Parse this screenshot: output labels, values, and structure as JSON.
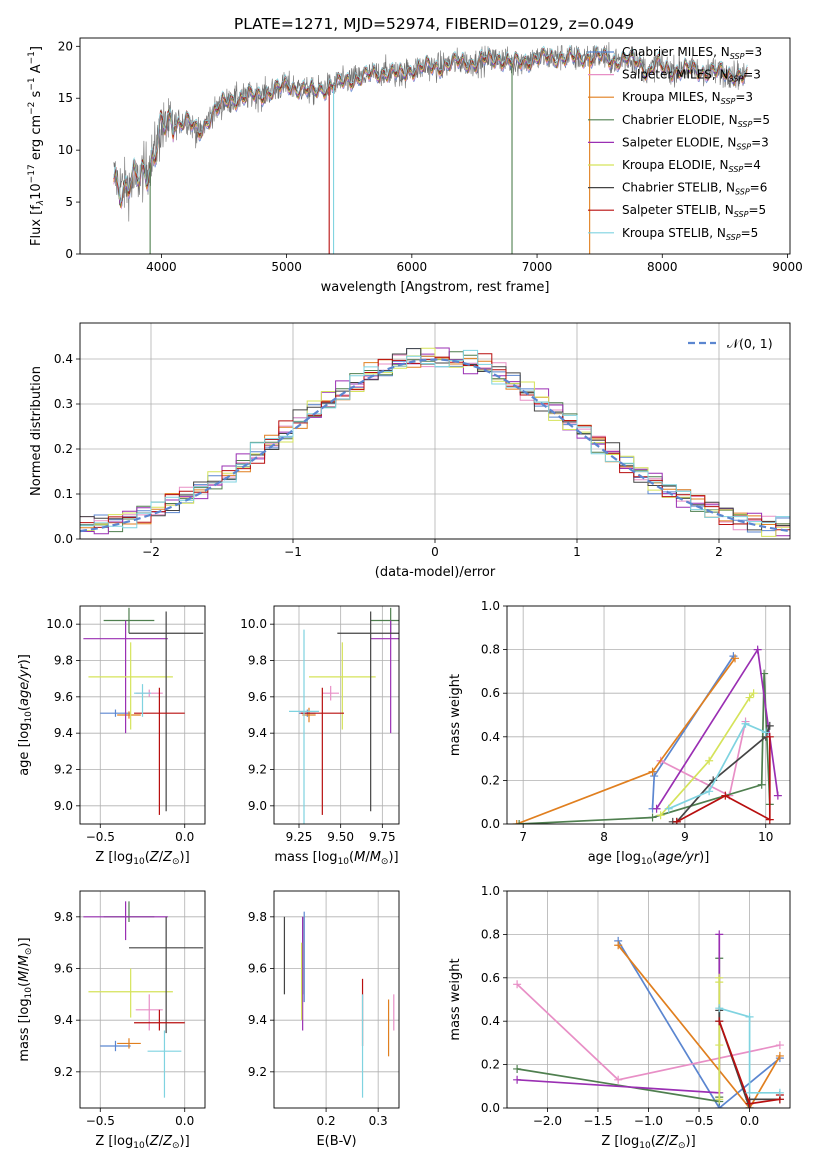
{
  "figure": {
    "title": "PLATE=1271, MJD=52974, FIBERID=0129, z=0.049"
  },
  "models": [
    {
      "label": "Chabrier MILES, N",
      "nssp": "=3",
      "color": "#5b86d0"
    },
    {
      "label": "Salpeter MILES, N",
      "nssp": "=3",
      "color": "#e88fc6"
    },
    {
      "label": "Kroupa MILES, N",
      "nssp": "=3",
      "color": "#e07f1f"
    },
    {
      "label": "Chabrier ELODIE, N",
      "nssp": "=5",
      "color": "#4f7f4f"
    },
    {
      "label": "Salpeter ELODIE, N",
      "nssp": "=3",
      "color": "#9a2fb3"
    },
    {
      "label": "Kroupa ELODIE, N",
      "nssp": "=4",
      "color": "#d5e35a"
    },
    {
      "label": "Chabrier STELIB, N",
      "nssp": "=6",
      "color": "#444444"
    },
    {
      "label": "Salpeter STELIB, N",
      "nssp": "=5",
      "color": "#b80f0f"
    },
    {
      "label": "Kroupa STELIB, N",
      "nssp": "=5",
      "color": "#7fd3e0"
    }
  ],
  "nssp_sub": "SSP",
  "chart_data": [
    {
      "id": "spectrum",
      "type": "line",
      "xlabel": "wavelength [Angstrom, rest frame]",
      "ylabel": "Flux [f",
      "ylabel_unit": "10",
      "ylabel_exp": "−17",
      "ylabel_rest": " erg cm",
      "ylabel_exp2": "−2",
      "ylabel_rest2": " s",
      "ylabel_exp3": "−1",
      "ylabel_rest3": " A",
      "ylabel_exp4": "−1",
      "ylabel_close": "]",
      "xlim": [
        3350,
        9020
      ],
      "ylim": [
        0,
        20.8
      ],
      "xticks": [
        4000,
        5000,
        6000,
        7000,
        8000,
        9000
      ],
      "yticks": [
        0,
        5,
        10,
        15,
        20
      ],
      "continuum": [
        [
          3620,
          7.5
        ],
        [
          3700,
          6.3
        ],
        [
          3800,
          7.0
        ],
        [
          3900,
          8.5
        ],
        [
          3950,
          10.0
        ],
        [
          4000,
          12.0
        ],
        [
          4100,
          12.5
        ],
        [
          4200,
          13.0
        ],
        [
          4300,
          11.5
        ],
        [
          4400,
          13.5
        ],
        [
          4500,
          14.5
        ],
        [
          4600,
          15.0
        ],
        [
          4700,
          15.2
        ],
        [
          4800,
          15.3
        ],
        [
          4900,
          15.8
        ],
        [
          5000,
          16.2
        ],
        [
          5100,
          16.0
        ],
        [
          5200,
          15.6
        ],
        [
          5300,
          16.0
        ],
        [
          5400,
          16.3
        ],
        [
          5500,
          16.8
        ],
        [
          5600,
          17.0
        ],
        [
          5700,
          17.3
        ],
        [
          5800,
          17.6
        ],
        [
          5900,
          17.2
        ],
        [
          6000,
          17.8
        ],
        [
          6100,
          18.0
        ],
        [
          6200,
          18.0
        ],
        [
          6300,
          18.3
        ],
        [
          6400,
          18.5
        ],
        [
          6500,
          18.4
        ],
        [
          6600,
          18.7
        ],
        [
          6700,
          18.9
        ],
        [
          6800,
          18.3
        ],
        [
          6900,
          18.6
        ],
        [
          7000,
          18.8
        ],
        [
          7100,
          18.9
        ],
        [
          7200,
          19.0
        ],
        [
          7300,
          18.8
        ],
        [
          7400,
          19.0
        ],
        [
          7500,
          19.0
        ],
        [
          7600,
          18.6
        ],
        [
          7700,
          18.8
        ],
        [
          7800,
          18.5
        ],
        [
          7900,
          17.5
        ],
        [
          7950,
          18.5
        ],
        [
          8000,
          17.8
        ],
        [
          8100,
          17.7
        ],
        [
          8200,
          17.8
        ],
        [
          8300,
          17.6
        ],
        [
          8400,
          17.6
        ],
        [
          8500,
          17.4
        ],
        [
          8600,
          17.3
        ],
        [
          8650,
          17.0
        ]
      ],
      "model_range": [
        3620,
        8680
      ],
      "data_range": [
        3620,
        8660
      ],
      "spikes": [
        [
          3910,
          3
        ],
        [
          5340,
          7
        ],
        [
          5375,
          8
        ],
        [
          6800,
          3
        ],
        [
          7420,
          2
        ]
      ]
    },
    {
      "id": "residuals",
      "type": "histogram",
      "xlabel": "(data-model)/error",
      "ylabel": "Normed distribution",
      "legend": "𝒩(0, 1)",
      "xlim": [
        -2.5,
        2.5
      ],
      "ylim": [
        0,
        0.48
      ],
      "xticks": [
        -2,
        -1,
        0,
        1,
        2
      ],
      "yticks": [
        0,
        0.1,
        0.2,
        0.3,
        0.4
      ],
      "bin_width": 0.1,
      "bin_start": -2.5
    },
    {
      "id": "age_vs_Z",
      "type": "errorbar",
      "xlabel": "Z [log",
      "ylabel": "age  [log",
      "xlim": [
        -0.62,
        0.12
      ],
      "ylim": [
        8.9,
        10.1
      ],
      "xticks": [
        -0.5,
        0.0
      ],
      "yticks": [
        9.0,
        9.2,
        9.4,
        9.6,
        9.8,
        10.0
      ],
      "points": [
        {
          "x": -0.41,
          "xe": [
            0.09,
            0.09
          ],
          "y": 9.51,
          "ye": [
            0.02,
            0.02
          ]
        },
        {
          "x": -0.21,
          "xe": [
            0.08,
            0.08
          ],
          "y": 9.62,
          "ye": [
            0.02,
            0.02
          ]
        },
        {
          "x": -0.33,
          "xe": [
            0.07,
            0.07
          ],
          "y": 9.5,
          "ye": [
            0.02,
            0.02
          ]
        },
        {
          "x": -0.33,
          "xe": [
            0.15,
            0.15
          ],
          "y": 10.02,
          "ye": [
            0.07,
            0.07
          ]
        },
        {
          "x": -0.35,
          "xe": [
            0.25,
            0.25
          ],
          "y": 9.92,
          "ye": [
            0.52,
            0.1
          ]
        },
        {
          "x": -0.32,
          "xe": [
            0.25,
            0.25
          ],
          "y": 9.71,
          "ye": [
            0.29,
            0.19
          ]
        },
        {
          "x": -0.11,
          "xe": [
            0.22,
            0.22
          ],
          "y": 9.95,
          "ye": [
            0.98,
            0.12
          ]
        },
        {
          "x": -0.15,
          "xe": [
            0.15,
            0.15
          ],
          "y": 9.51,
          "ye": [
            0.56,
            0.14
          ]
        },
        {
          "x": -0.25,
          "xe": [
            0.05,
            0.05
          ],
          "y": 9.62,
          "ye": [
            0.13,
            0.05
          ]
        }
      ]
    },
    {
      "id": "age_vs_mass",
      "type": "errorbar",
      "xlabel": "mass [log",
      "xlim": [
        9.1,
        9.85
      ],
      "ylim": [
        8.9,
        10.1
      ],
      "xticks": [
        9.25,
        9.5,
        9.75
      ],
      "yticks": [
        9.0,
        9.2,
        9.4,
        9.6,
        9.8,
        10.0
      ],
      "points": [
        {
          "x": 9.3,
          "xe": [
            0.05,
            0.05
          ],
          "y": 9.51,
          "ye": [
            0.02,
            0.02
          ]
        },
        {
          "x": 9.44,
          "xe": [
            0.05,
            0.05
          ],
          "y": 9.62,
          "ye": [
            0.04,
            0.04
          ]
        },
        {
          "x": 9.31,
          "xe": [
            0.04,
            0.04
          ],
          "y": 9.5,
          "ye": [
            0.04,
            0.04
          ]
        },
        {
          "x": 9.8,
          "xe": [
            0.12,
            0.12
          ],
          "y": 10.02,
          "ye": [
            0.07,
            0.07
          ]
        },
        {
          "x": 9.8,
          "xe": [
            0.12,
            0.12
          ],
          "y": 9.92,
          "ye": [
            0.52,
            0.1
          ]
        },
        {
          "x": 9.51,
          "xe": [
            0.2,
            0.2
          ],
          "y": 9.71,
          "ye": [
            0.29,
            0.19
          ]
        },
        {
          "x": 9.68,
          "xe": [
            0.2,
            0.2
          ],
          "y": 9.95,
          "ye": [
            0.98,
            0.12
          ]
        },
        {
          "x": 9.39,
          "xe": [
            0.13,
            0.13
          ],
          "y": 9.51,
          "ye": [
            0.56,
            0.14
          ]
        },
        {
          "x": 9.28,
          "xe": [
            0.09,
            0.09
          ],
          "y": 9.52,
          "ye": [
            0.62,
            0.45
          ]
        }
      ]
    },
    {
      "id": "mw_vs_age",
      "type": "line",
      "xlabel": "age  [log",
      "ylabel": "mass weight",
      "xlim": [
        6.8,
        10.3
      ],
      "ylim": [
        0,
        1.0
      ],
      "xticks": [
        7,
        8,
        9,
        10
      ],
      "yticks": [
        0.0,
        0.2,
        0.4,
        0.6,
        0.8,
        1.0
      ],
      "series": [
        {
          "x": [
            8.6,
            8.62,
            9.6
          ],
          "y": [
            0.07,
            0.22,
            0.77
          ]
        },
        {
          "x": [
            8.7,
            9.55,
            9.75
          ],
          "y": [
            0.29,
            0.13,
            0.47
          ]
        },
        {
          "x": [
            6.92,
            8.6,
            9.62
          ],
          "y": [
            0.0,
            0.24,
            0.76
          ]
        },
        {
          "x": [
            6.95,
            8.6,
            9.95,
            9.98,
            10.05
          ],
          "y": [
            0.0,
            0.03,
            0.18,
            0.69,
            0.09
          ]
        },
        {
          "x": [
            8.65,
            9.9,
            10.15
          ],
          "y": [
            0.07,
            0.8,
            0.13
          ]
        },
        {
          "x": [
            8.7,
            9.3,
            9.8,
            9.85
          ],
          "y": [
            0.04,
            0.29,
            0.58,
            0.6
          ]
        },
        {
          "x": [
            8.85,
            8.9,
            9.35,
            10.0,
            10.05
          ],
          "y": [
            0.01,
            0.01,
            0.2,
            0.4,
            0.45
          ]
        },
        {
          "x": [
            8.9,
            9.5,
            10.05,
            10.05
          ],
          "y": [
            0.01,
            0.13,
            0.02,
            0.4
          ]
        },
        {
          "x": [
            8.8,
            9.3,
            9.75,
            10.0
          ],
          "y": [
            0.07,
            0.15,
            0.46,
            0.42
          ]
        }
      ]
    },
    {
      "id": "mass_vs_Z",
      "type": "errorbar",
      "xlabel": "Z [log",
      "ylabel": "mass [log",
      "xlim": [
        -0.62,
        0.12
      ],
      "ylim": [
        9.06,
        9.9
      ],
      "xticks": [
        -0.5,
        0.0
      ],
      "yticks": [
        9.2,
        9.4,
        9.6,
        9.8
      ],
      "points": [
        {
          "x": -0.41,
          "xe": [
            0.09,
            0.09
          ],
          "y": 9.3,
          "ye": [
            0.02,
            0.02
          ]
        },
        {
          "x": -0.21,
          "xe": [
            0.08,
            0.08
          ],
          "y": 9.44,
          "ye": [
            0.08,
            0.06
          ]
        },
        {
          "x": -0.33,
          "xe": [
            0.07,
            0.07
          ],
          "y": 9.31,
          "ye": [
            0.02,
            0.02
          ]
        },
        {
          "x": -0.33,
          "xe": [
            0.15,
            0.15
          ],
          "y": 9.8,
          "ye": [
            0.02,
            0.06
          ]
        },
        {
          "x": -0.35,
          "xe": [
            0.25,
            0.25
          ],
          "y": 9.8,
          "ye": [
            0.09,
            0.06
          ]
        },
        {
          "x": -0.32,
          "xe": [
            0.25,
            0.25
          ],
          "y": 9.51,
          "ye": [
            0.1,
            0.09
          ]
        },
        {
          "x": -0.11,
          "xe": [
            0.22,
            0.22
          ],
          "y": 9.68,
          "ye": [
            0.33,
            0.12
          ]
        },
        {
          "x": -0.15,
          "xe": [
            0.15,
            0.15
          ],
          "y": 9.39,
          "ye": [
            0.03,
            0.05
          ]
        },
        {
          "x": -0.12,
          "xe": [
            0.1,
            0.1
          ],
          "y": 9.28,
          "ye": [
            0.18,
            0.08
          ]
        }
      ]
    },
    {
      "id": "mass_vs_ebv",
      "type": "errorbar",
      "xlabel": "E(B-V)",
      "xlim": [
        0.1,
        0.34
      ],
      "ylim": [
        9.06,
        9.9
      ],
      "xticks": [
        0.2,
        0.3
      ],
      "yticks": [
        9.2,
        9.4,
        9.6,
        9.8
      ],
      "points": [
        {
          "x": 0.158,
          "xe": [
            0,
            0
          ],
          "y": 9.53,
          "ye": [
            0.06,
            0.29
          ]
        },
        {
          "x": 0.33,
          "xe": [
            0,
            0
          ],
          "y": 9.43,
          "ye": [
            0.07,
            0.07
          ]
        },
        {
          "x": 0.32,
          "xe": [
            0,
            0
          ],
          "y": 9.37,
          "ye": [
            0.11,
            0.11
          ]
        },
        {
          "x": 0.155,
          "xe": [
            0,
            0
          ],
          "y": 9.65,
          "ye": [
            0.15,
            0.15
          ]
        },
        {
          "x": 0.155,
          "xe": [
            0,
            0
          ],
          "y": 9.55,
          "ye": [
            0.19,
            0.25
          ]
        },
        {
          "x": 0.153,
          "xe": [
            0,
            0
          ],
          "y": 9.55,
          "ye": [
            0.15,
            0.15
          ]
        },
        {
          "x": 0.12,
          "xe": [
            0,
            0
          ],
          "y": 9.66,
          "ye": [
            0.16,
            0.14
          ]
        },
        {
          "x": 0.27,
          "xe": [
            0,
            0
          ],
          "y": 9.4,
          "ye": [
            0.1,
            0.16
          ]
        },
        {
          "x": 0.27,
          "xe": [
            0,
            0
          ],
          "y": 9.3,
          "ye": [
            0.2,
            0.2
          ]
        }
      ]
    },
    {
      "id": "mw_vs_Z",
      "type": "line",
      "xlabel": "Z [log",
      "ylabel": "mass weight",
      "xlim": [
        -2.4,
        0.4
      ],
      "ylim": [
        0,
        1.0
      ],
      "xticks": [
        -2.0,
        -1.5,
        -1.0,
        -0.5,
        0.0
      ],
      "yticks": [
        0.0,
        0.2,
        0.4,
        0.6,
        0.8,
        1.0
      ],
      "series": [
        {
          "x": [
            -1.3,
            -0.3,
            0.3
          ],
          "y": [
            0.77,
            0.0,
            0.23
          ]
        },
        {
          "x": [
            -2.3,
            -1.3,
            0.3
          ],
          "y": [
            0.57,
            0.13,
            0.29
          ]
        },
        {
          "x": [
            -1.3,
            0.0,
            0.3
          ],
          "y": [
            0.75,
            0.0,
            0.24
          ]
        },
        {
          "x": [
            -2.3,
            -0.3,
            -0.3,
            -0.3
          ],
          "y": [
            0.18,
            0.03,
            0.05,
            0.69
          ]
        },
        {
          "x": [
            -2.3,
            -0.3,
            -0.3
          ],
          "y": [
            0.13,
            0.07,
            0.8
          ]
        },
        {
          "x": [
            -0.3,
            -0.3,
            -0.3,
            -0.3
          ],
          "y": [
            0.04,
            0.29,
            0.58,
            0.6
          ]
        },
        {
          "x": [
            -0.3,
            -0.3,
            0.0,
            0.0,
            0.3
          ],
          "y": [
            0.45,
            0.4,
            0.0,
            0.04,
            0.04
          ]
        },
        {
          "x": [
            -0.3,
            0.0,
            0.3,
            0.3
          ],
          "y": [
            0.4,
            0.02,
            0.04,
            0.06
          ]
        },
        {
          "x": [
            -0.3,
            0.0,
            0.0,
            0.3
          ],
          "y": [
            0.46,
            0.42,
            0.07,
            0.07
          ]
        }
      ]
    }
  ]
}
